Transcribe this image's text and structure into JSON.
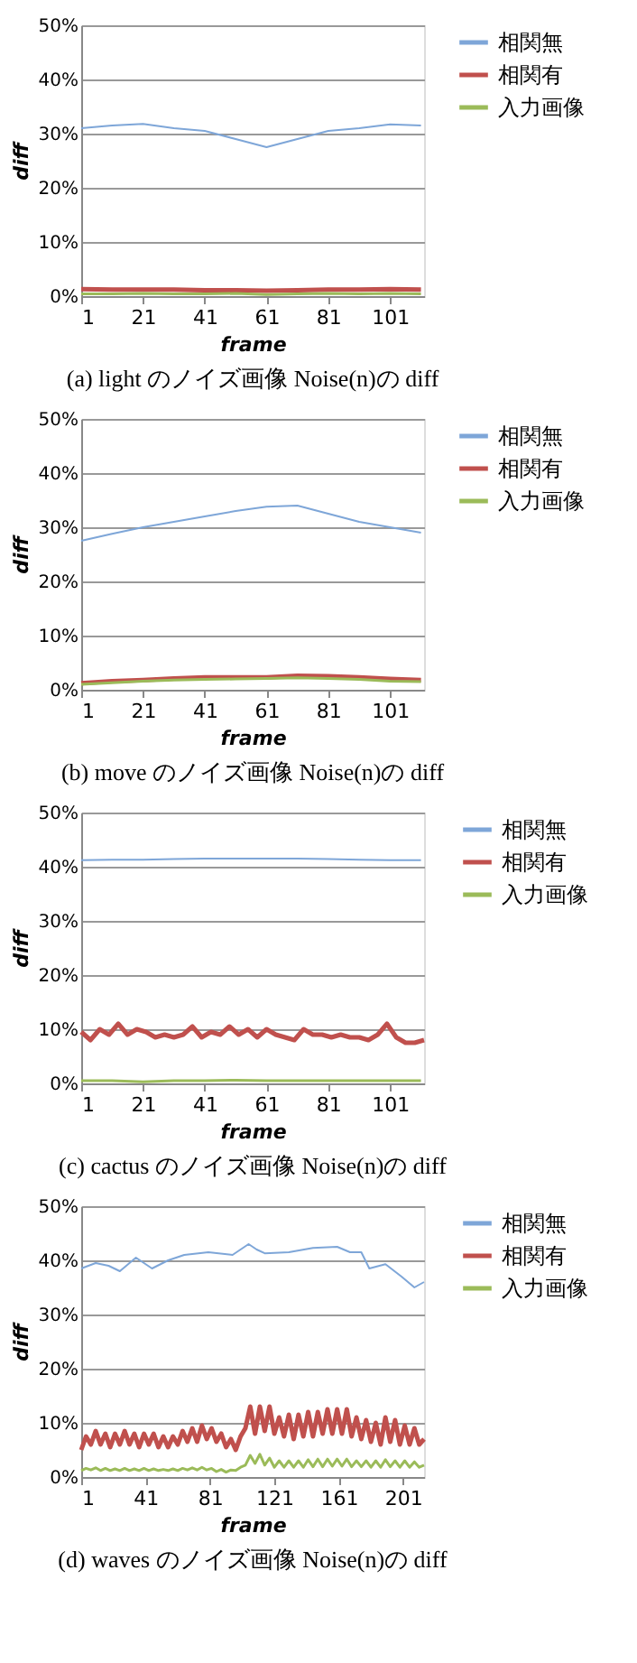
{
  "chart_data": [
    {
      "type": "line",
      "title": "(a) light のノイズ画像 Noise(n)の diff",
      "xlabel": "frame",
      "ylabel": "diff",
      "xlim": [
        1,
        112
      ],
      "xticks": [
        1,
        21,
        41,
        61,
        81,
        101
      ],
      "ylim": [
        0,
        50
      ],
      "yticks": [
        {
          "value": 0,
          "label": "0%"
        },
        {
          "value": 10,
          "label": "10%"
        },
        {
          "value": 20,
          "label": "20%"
        },
        {
          "value": 30,
          "label": "30%"
        },
        {
          "value": 40,
          "label": "40%"
        },
        {
          "value": 50,
          "label": "50%"
        }
      ],
      "grid": "y",
      "legend": "right",
      "marker": "none",
      "x": [
        1,
        11,
        21,
        31,
        41,
        51,
        61,
        71,
        81,
        91,
        101,
        111
      ],
      "series": [
        {
          "name": "相関無",
          "color": "#7ea6d8",
          "values": [
            31,
            31.5,
            31.8,
            31,
            30.5,
            29,
            27.5,
            29,
            30.5,
            31,
            31.7,
            31.5
          ]
        },
        {
          "name": "相関有",
          "color": "#c0504d",
          "values": [
            1.3,
            1.2,
            1.2,
            1.2,
            1.1,
            1.1,
            1,
            1.1,
            1.2,
            1.2,
            1.3,
            1.2
          ]
        },
        {
          "name": "入力画像",
          "color": "#9bbb59",
          "values": [
            0.4,
            0.4,
            0.5,
            0.4,
            0.4,
            0.5,
            0.3,
            0.4,
            0.5,
            0.4,
            0.5,
            0.4
          ]
        }
      ]
    },
    {
      "type": "line",
      "title": "(b) move のノイズ画像 Noise(n)の diff",
      "xlabel": "frame",
      "ylabel": "diff",
      "xlim": [
        1,
        112
      ],
      "xticks": [
        1,
        21,
        41,
        61,
        81,
        101
      ],
      "ylim": [
        0,
        50
      ],
      "yticks": [
        {
          "value": 0,
          "label": "0%"
        },
        {
          "value": 10,
          "label": "10%"
        },
        {
          "value": 20,
          "label": "20%"
        },
        {
          "value": 30,
          "label": "30%"
        },
        {
          "value": 40,
          "label": "40%"
        },
        {
          "value": 50,
          "label": "50%"
        }
      ],
      "grid": "y",
      "legend": "right",
      "marker": "none",
      "x": [
        1,
        11,
        21,
        31,
        41,
        51,
        61,
        71,
        81,
        91,
        101,
        111
      ],
      "series": [
        {
          "name": "相関無",
          "color": "#7ea6d8",
          "values": [
            27.5,
            28.8,
            30,
            31,
            32,
            33,
            33.8,
            34,
            32.5,
            31,
            30,
            29
          ]
        },
        {
          "name": "相関有",
          "color": "#c0504d",
          "values": [
            1.2,
            1.6,
            1.8,
            2.1,
            2.3,
            2.3,
            2.3,
            2.6,
            2.5,
            2.3,
            2,
            1.8
          ]
        },
        {
          "name": "入力画像",
          "color": "#9bbb59",
          "values": [
            1,
            1.3,
            1.6,
            1.8,
            1.9,
            2,
            2.1,
            2.2,
            2.1,
            1.9,
            1.6,
            1.5
          ]
        }
      ]
    },
    {
      "type": "line",
      "title": "(c) cactus のノイズ画像 Noise(n)の diff",
      "xlabel": "frame",
      "ylabel": "diff",
      "xlim": [
        1,
        112
      ],
      "xticks": [
        1,
        21,
        41,
        61,
        81,
        101
      ],
      "ylim": [
        0,
        50
      ],
      "yticks": [
        {
          "value": 0,
          "label": "0%"
        },
        {
          "value": 10,
          "label": "10%"
        },
        {
          "value": 20,
          "label": "20%"
        },
        {
          "value": 30,
          "label": "30%"
        },
        {
          "value": 40,
          "label": "40%"
        },
        {
          "value": 50,
          "label": "50%"
        }
      ],
      "grid": "y",
      "legend": "right",
      "marker": "none",
      "x": [
        1,
        11,
        21,
        31,
        41,
        51,
        61,
        71,
        81,
        91,
        101,
        111
      ],
      "series": [
        {
          "name": "相関無",
          "color": "#7ea6d8",
          "values": [
            41.2,
            41.3,
            41.3,
            41.4,
            41.5,
            41.5,
            41.5,
            41.5,
            41.4,
            41.3,
            41.2,
            41.2
          ]
        },
        {
          "name": "相関有",
          "color": "#c0504d",
          "x": [
            1,
            4,
            7,
            10,
            13,
            16,
            19,
            22,
            25,
            28,
            31,
            34,
            37,
            40,
            43,
            46,
            49,
            52,
            55,
            58,
            61,
            64,
            67,
            70,
            73,
            76,
            79,
            82,
            85,
            88,
            91,
            94,
            97,
            100,
            103,
            106,
            109,
            112
          ],
          "values": [
            9.5,
            8,
            10,
            9,
            11,
            9,
            10,
            9.5,
            8.5,
            9,
            8.5,
            9,
            10.5,
            8.5,
            9.5,
            9,
            10.5,
            9,
            10,
            8.5,
            10,
            9,
            8.5,
            8,
            10,
            9,
            9,
            8.5,
            9,
            8.5,
            8.5,
            8,
            9,
            11,
            8.5,
            7.5,
            7.5,
            8
          ]
        },
        {
          "name": "入力画像",
          "color": "#9bbb59",
          "values": [
            0.5,
            0.5,
            0.3,
            0.5,
            0.5,
            0.6,
            0.5,
            0.5,
            0.5,
            0.5,
            0.5,
            0.5
          ]
        }
      ]
    },
    {
      "type": "line",
      "title": "(d) waves のノイズ画像 Noise(n)の diff",
      "xlabel": "frame",
      "ylabel": "diff",
      "xlim": [
        1,
        214
      ],
      "xticks": [
        1,
        41,
        81,
        121,
        161,
        201
      ],
      "ylim": [
        0,
        50
      ],
      "yticks": [
        {
          "value": 0,
          "label": "0%"
        },
        {
          "value": 10,
          "label": "10%"
        },
        {
          "value": 20,
          "label": "20%"
        },
        {
          "value": 30,
          "label": "30%"
        },
        {
          "value": 40,
          "label": "40%"
        },
        {
          "value": 50,
          "label": "50%"
        }
      ],
      "grid": "y",
      "legend": "right",
      "marker": "none",
      "x": [
        1,
        4,
        7,
        10,
        13,
        16,
        19,
        22,
        25,
        28,
        31,
        34,
        37,
        40,
        43,
        46,
        49,
        52,
        55,
        58,
        61,
        64,
        67,
        70,
        73,
        76,
        79,
        82,
        85,
        88,
        91,
        94,
        97,
        100,
        103,
        106,
        109,
        112,
        115,
        118,
        121,
        124,
        127,
        130,
        133,
        136,
        139,
        142,
        145,
        148,
        151,
        154,
        157,
        160,
        163,
        166,
        169,
        172,
        175,
        178,
        181,
        184,
        187,
        190,
        193,
        196,
        199,
        202,
        205,
        208,
        211,
        214
      ],
      "series": [
        {
          "name": "相関無",
          "color": "#7ea6d8",
          "x": [
            1,
            10,
            18,
            25,
            35,
            45,
            55,
            65,
            80,
            95,
            105,
            110,
            115,
            130,
            145,
            160,
            168,
            175,
            180,
            190,
            200,
            208,
            214
          ],
          "values": [
            38.5,
            39.5,
            39,
            38,
            40.5,
            38.5,
            40,
            41,
            41.5,
            41,
            43,
            42,
            41.3,
            41.5,
            42.3,
            42.5,
            41.5,
            41.5,
            38.5,
            39.3,
            37,
            35,
            36
          ]
        },
        {
          "name": "相関有",
          "color": "#c0504d",
          "values": [
            5,
            7.5,
            6,
            8.5,
            6,
            8,
            5.5,
            8,
            6,
            8.5,
            6,
            8,
            5.5,
            8,
            6,
            8,
            5.5,
            7.5,
            5.5,
            7.5,
            6,
            8.5,
            6.5,
            9,
            6.5,
            9.5,
            7,
            9,
            6.5,
            8,
            5.5,
            7,
            5,
            7.5,
            9,
            13,
            8,
            13,
            8.5,
            13,
            8,
            11,
            7.5,
            11.5,
            7,
            11.5,
            7.5,
            12,
            7.5,
            12,
            8,
            12.5,
            8,
            12.5,
            8,
            12.5,
            7.5,
            11,
            7,
            10.5,
            6.5,
            10,
            6,
            11,
            6.5,
            10.5,
            6,
            9.5,
            6,
            9,
            6,
            7
          ]
        },
        {
          "name": "入力画像",
          "color": "#9bbb59",
          "values": [
            1.2,
            1.6,
            1.3,
            1.7,
            1.2,
            1.6,
            1.2,
            1.5,
            1.2,
            1.6,
            1.2,
            1.5,
            1.2,
            1.6,
            1.2,
            1.5,
            1.2,
            1.4,
            1.2,
            1.5,
            1.2,
            1.6,
            1.3,
            1.7,
            1.3,
            1.8,
            1.3,
            1.6,
            1.0,
            1.4,
            0.9,
            1.3,
            1.2,
            1.8,
            2.2,
            4,
            2.5,
            4.2,
            2.2,
            3.5,
            1.8,
            3,
            1.8,
            3,
            1.8,
            3,
            1.8,
            3.2,
            1.9,
            3.3,
            1.9,
            3.3,
            2,
            3.3,
            2,
            3.3,
            1.9,
            3,
            1.9,
            3,
            1.8,
            3,
            1.8,
            3.2,
            1.9,
            3,
            1.8,
            3,
            1.8,
            2.8,
            1.8,
            2.2
          ]
        }
      ]
    }
  ]
}
